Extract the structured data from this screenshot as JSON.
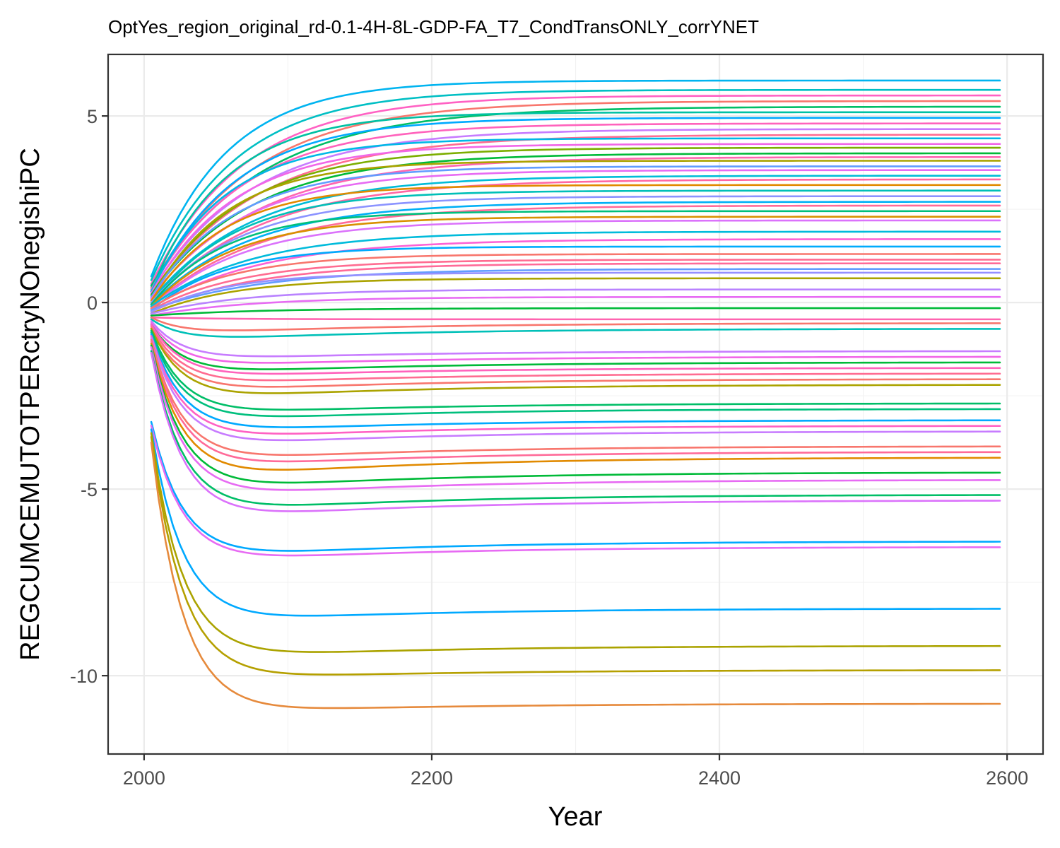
{
  "chart_data": {
    "type": "line",
    "title": "OptYes_region_original_rd-0.1-4H-8L-GDP-FA_T7_CondTransONLY_corrYNET",
    "xlabel": "Year",
    "ylabel": "REGCUMCEMUTOTPERctryNOnegishiPC",
    "xlim": [
      1975,
      2625
    ],
    "ylim": [
      -12.1,
      6.65
    ],
    "x_ticks": [
      2000,
      2200,
      2400,
      2600
    ],
    "x_tick_labels": [
      "2000",
      "2200",
      "2400",
      "2600"
    ],
    "y_ticks": [
      -10,
      -5,
      0,
      5
    ],
    "y_tick_labels": [
      "-10",
      "-5",
      "0",
      "5"
    ],
    "x_minor_ticks": [
      2100,
      2300,
      2500
    ],
    "y_minor_ticks": [
      -7.5,
      -2.5,
      2.5
    ],
    "grid": true,
    "legend": "none",
    "x_start": 2005,
    "x_end": 2595,
    "series": [
      {
        "color": "#00B4F0",
        "start": 0.7,
        "end": 5.95,
        "extreme": null
      },
      {
        "color": "#00BFC4",
        "start": 0.6,
        "end": 5.7,
        "extreme": null
      },
      {
        "color": "#FF61C3",
        "start": 0.5,
        "end": 5.55,
        "extreme": null
      },
      {
        "color": "#F8766D",
        "start": 0.4,
        "end": 5.4,
        "extreme": null
      },
      {
        "color": "#00BE67",
        "start": 0.45,
        "end": 5.25,
        "extreme": null
      },
      {
        "color": "#00C1A3",
        "start": 0.35,
        "end": 5.1,
        "extreme": null
      },
      {
        "color": "#00A9FF",
        "start": 0.3,
        "end": 4.95,
        "extreme": null
      },
      {
        "color": "#FF62BC",
        "start": 0.35,
        "end": 4.8,
        "extreme": null
      },
      {
        "color": "#C77CFF",
        "start": 0.3,
        "end": 4.65,
        "extreme": null
      },
      {
        "color": "#FF6C91",
        "start": 0.25,
        "end": 4.5,
        "extreme": null
      },
      {
        "color": "#00B8E7",
        "start": 0.3,
        "end": 4.4,
        "extreme": null
      },
      {
        "color": "#F166E8",
        "start": 0.25,
        "end": 4.25,
        "extreme": null
      },
      {
        "color": "#7CAE00",
        "start": 0.2,
        "end": 4.15,
        "extreme": null
      },
      {
        "color": "#00BA38",
        "start": 0.2,
        "end": 4.0,
        "extreme": null
      },
      {
        "color": "#FF64B0",
        "start": 0.15,
        "end": 3.9,
        "extreme": null
      },
      {
        "color": "#ABA300",
        "start": 0.1,
        "end": 3.8,
        "extreme": null
      },
      {
        "color": "#619CFF",
        "start": 0.15,
        "end": 3.65,
        "extreme": null
      },
      {
        "color": "#E76BF3",
        "start": 0.1,
        "end": 3.55,
        "extreme": null
      },
      {
        "color": "#00BCD8",
        "start": 0.05,
        "end": 3.4,
        "extreme": null
      },
      {
        "color": "#FF67A4",
        "start": 0.0,
        "end": 3.3,
        "extreme": null
      },
      {
        "color": "#E18A00",
        "start": 0.05,
        "end": 3.15,
        "extreme": null
      },
      {
        "color": "#00C0B8",
        "start": -0.05,
        "end": 3.0,
        "extreme": null
      },
      {
        "color": "#8B93FF",
        "start": 0.0,
        "end": 2.85,
        "extreme": null
      },
      {
        "color": "#00B0F6",
        "start": -0.05,
        "end": 2.7,
        "extreme": null
      },
      {
        "color": "#FF6A98",
        "start": -0.1,
        "end": 2.6,
        "extreme": null
      },
      {
        "color": "#00BF7D",
        "start": -0.05,
        "end": 2.45,
        "extreme": null
      },
      {
        "color": "#D89000",
        "start": -0.1,
        "end": 2.3,
        "extreme": null
      },
      {
        "color": "#DB72FB",
        "start": -0.15,
        "end": 2.2,
        "extreme": null
      },
      {
        "color": "#00BBDB",
        "start": -0.1,
        "end": 1.9,
        "extreme": null
      },
      {
        "color": "#FC61D5",
        "start": -0.15,
        "end": 1.7,
        "extreme": null
      },
      {
        "color": "#00ABFD",
        "start": -0.2,
        "end": 1.5,
        "extreme": null
      },
      {
        "color": "#F8766D",
        "start": -0.15,
        "end": 1.3,
        "extreme": null
      },
      {
        "color": "#FF6C91",
        "start": -0.2,
        "end": 1.15,
        "extreme": null
      },
      {
        "color": "#FF6A98",
        "start": -0.25,
        "end": 1.05,
        "extreme": null
      },
      {
        "color": "#619CFF",
        "start": -0.2,
        "end": 0.9,
        "extreme": null
      },
      {
        "color": "#9590FF",
        "start": -0.25,
        "end": 0.8,
        "extreme": null
      },
      {
        "color": "#ABA300",
        "start": -0.3,
        "end": 0.65,
        "extreme": null
      },
      {
        "color": "#B983FF",
        "start": -0.3,
        "end": 0.35,
        "extreme": null
      },
      {
        "color": "#E76BF3",
        "start": -0.35,
        "end": 0.15,
        "extreme": null
      },
      {
        "color": "#00BA38",
        "start": -0.35,
        "end": -0.15,
        "extreme": null
      },
      {
        "color": "#FF64B0",
        "start": -0.4,
        "end": -0.45,
        "extreme": null
      },
      {
        "color": "#F8766D",
        "start": -0.4,
        "end": -0.55,
        "extreme": -0.9
      },
      {
        "color": "#00C0B8",
        "start": -0.45,
        "end": -0.7,
        "extreme": -1.1
      },
      {
        "color": "#C77CFF",
        "start": -0.5,
        "end": -1.3,
        "extreme": -1.6
      },
      {
        "color": "#F166E8",
        "start": -0.55,
        "end": -1.45,
        "extreme": -1.8
      },
      {
        "color": "#00BA38",
        "start": -0.6,
        "end": -1.6,
        "extreme": -2.0
      },
      {
        "color": "#FF62BC",
        "start": -0.6,
        "end": -1.75,
        "extreme": -2.1
      },
      {
        "color": "#FF6C91",
        "start": -0.65,
        "end": -1.9,
        "extreme": -2.3
      },
      {
        "color": "#F8766D",
        "start": -0.7,
        "end": -2.05,
        "extreme": -2.5
      },
      {
        "color": "#ABA300",
        "start": -0.7,
        "end": -2.2,
        "extreme": -2.7
      },
      {
        "color": "#00BE67",
        "start": -0.75,
        "end": -2.7,
        "extreme": -3.1
      },
      {
        "color": "#00BF7D",
        "start": -0.8,
        "end": -2.85,
        "extreme": -3.3
      },
      {
        "color": "#00A9FF",
        "start": -0.85,
        "end": -3.15,
        "extreme": -3.6
      },
      {
        "color": "#FF61C3",
        "start": -0.9,
        "end": -3.3,
        "extreme": -3.8
      },
      {
        "color": "#C77CFF",
        "start": -0.95,
        "end": -3.45,
        "extreme": -4.0
      },
      {
        "color": "#F8766D",
        "start": -1.0,
        "end": -3.85,
        "extreme": -4.4
      },
      {
        "color": "#FF6A98",
        "start": -1.05,
        "end": -4.0,
        "extreme": -4.6
      },
      {
        "color": "#E18A00",
        "start": -1.1,
        "end": -4.15,
        "extreme": -4.9
      },
      {
        "color": "#00BA38",
        "start": -1.15,
        "end": -4.55,
        "extreme": -5.2
      },
      {
        "color": "#E76BF3",
        "start": -1.2,
        "end": -4.75,
        "extreme": -5.4
      },
      {
        "color": "#00BE67",
        "start": -1.3,
        "end": -5.15,
        "extreme": -5.8
      },
      {
        "color": "#DB72FB",
        "start": -1.35,
        "end": -5.3,
        "extreme": -6.0
      },
      {
        "color": "#00A9FF",
        "start": -3.2,
        "end": -6.4,
        "extreme": -7.0
      },
      {
        "color": "#E76BF3",
        "start": -3.3,
        "end": -6.55,
        "extreme": -7.1
      },
      {
        "color": "#00A9FF",
        "start": -3.4,
        "end": -8.2,
        "extreme": -8.7
      },
      {
        "color": "#ABA300",
        "start": -3.5,
        "end": -9.2,
        "extreme": -9.65
      },
      {
        "color": "#B5A000",
        "start": -3.6,
        "end": -9.85,
        "extreme": -10.2
      },
      {
        "color": "#E68A3C",
        "start": -3.75,
        "end": -10.75,
        "extreme": -11.1
      }
    ]
  }
}
